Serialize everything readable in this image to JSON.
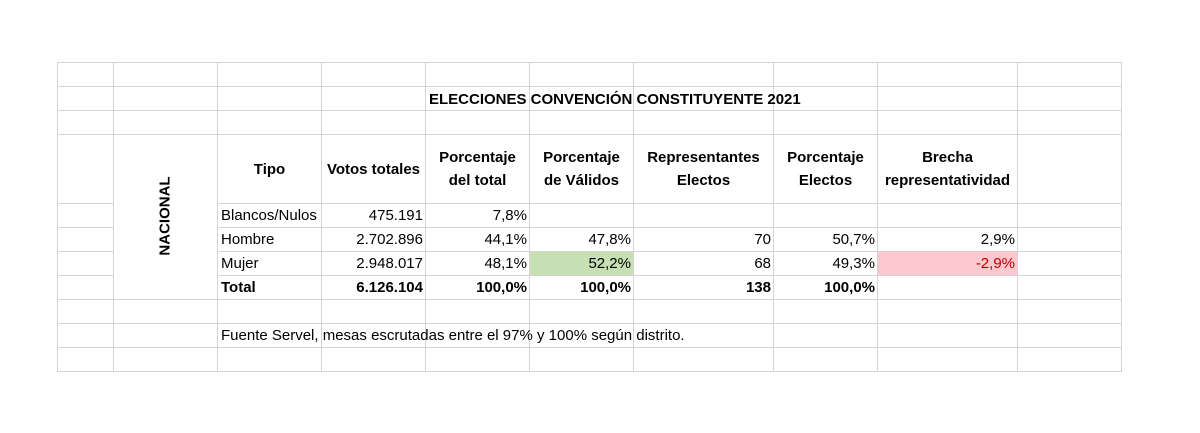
{
  "title": "ELECCIONES CONVENCIÓN CONSTITUYENTE 2021",
  "side_label": "NACIONAL",
  "headers": {
    "tipo": "Tipo",
    "votos": "Votos totales",
    "pct_total_1": "Porcentaje",
    "pct_total_2": "del total",
    "pct_validos_1": "Porcentaje",
    "pct_validos_2": "de Válidos",
    "repr_1": "Representantes",
    "repr_2": "Electos",
    "pct_electos_1": "Porcentaje",
    "pct_electos_2": "Electos",
    "brecha_1": "Brecha",
    "brecha_2": "representatividad"
  },
  "rows": [
    {
      "tipo": "Blancos/Nulos",
      "votos": "475.191",
      "pct_total": "7,8%",
      "pct_validos": "",
      "representantes": "",
      "pct_electos": "",
      "brecha": ""
    },
    {
      "tipo": "Hombre",
      "votos": "2.702.896",
      "pct_total": "44,1%",
      "pct_validos": "47,8%",
      "representantes": "70",
      "pct_electos": "50,7%",
      "brecha": "2,9%"
    },
    {
      "tipo": "Mujer",
      "votos": "2.948.017",
      "pct_total": "48,1%",
      "pct_validos": "52,2%",
      "representantes": "68",
      "pct_electos": "49,3%",
      "brecha": "-2,9%"
    },
    {
      "tipo": "Total",
      "votos": "6.126.104",
      "pct_total": "100,0%",
      "pct_validos": "100,0%",
      "representantes": "138",
      "pct_electos": "100,0%",
      "brecha": ""
    }
  ],
  "footnote": "Fuente Servel, mesas escrutadas entre el 97% y 100% según distrito.",
  "colors": {
    "highlight_green": "#c6e0b4",
    "highlight_pink": "#ffc7ce",
    "negative_text": "#c00000",
    "gridline": "#d4d4d4"
  }
}
